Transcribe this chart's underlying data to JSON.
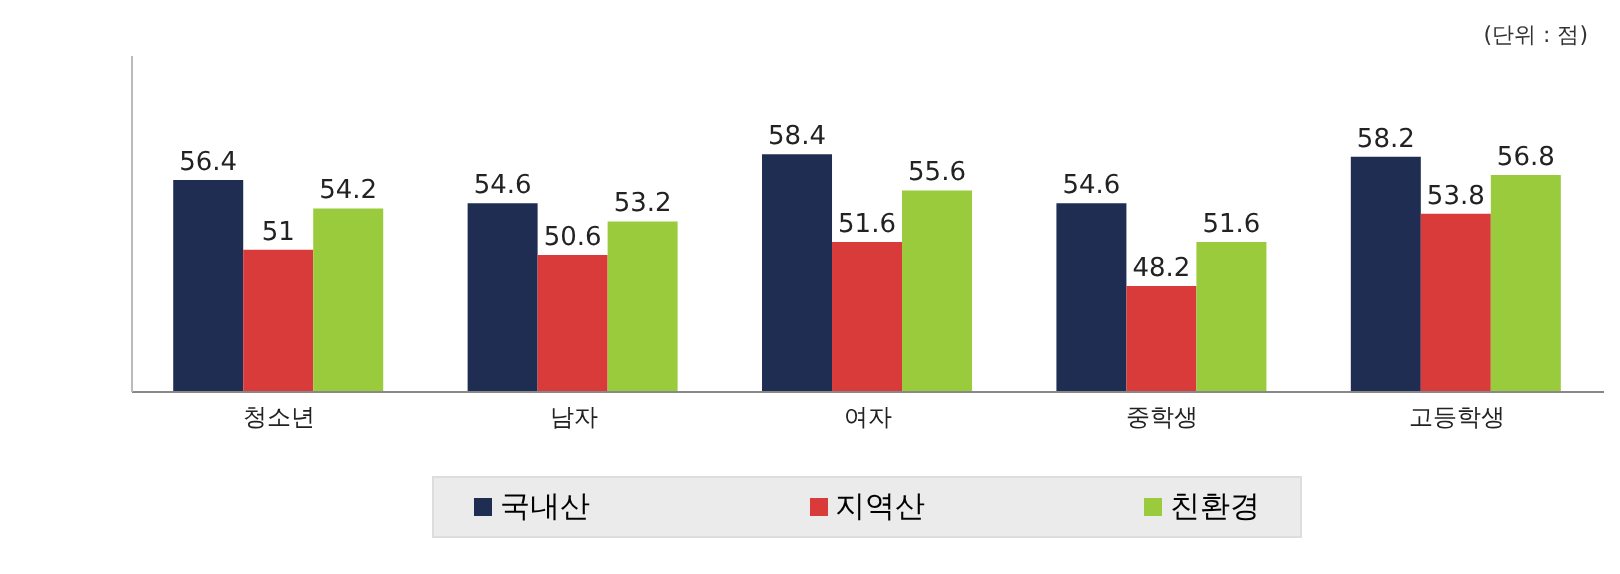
{
  "chart_data": {
    "type": "bar",
    "categories": [
      "청소년",
      "남자",
      "여자",
      "중학생",
      "고등학생"
    ],
    "series": [
      {
        "name": "국내산",
        "color": "#1f2d52",
        "values": [
          56.4,
          54.6,
          58.4,
          54.6,
          58.2
        ]
      },
      {
        "name": "지역산",
        "color": "#d93a3a",
        "values": [
          51,
          50.6,
          51.6,
          48.2,
          53.8
        ]
      },
      {
        "name": "친환경",
        "color": "#9acb3c",
        "values": [
          54.2,
          53.2,
          55.6,
          51.6,
          56.8
        ]
      }
    ],
    "ylim": [
      40,
      66
    ],
    "tick_labels": "x",
    "data_labels": true,
    "legend": "bottom",
    "grid": false,
    "annotations": [
      "(단위 : 점)"
    ]
  }
}
